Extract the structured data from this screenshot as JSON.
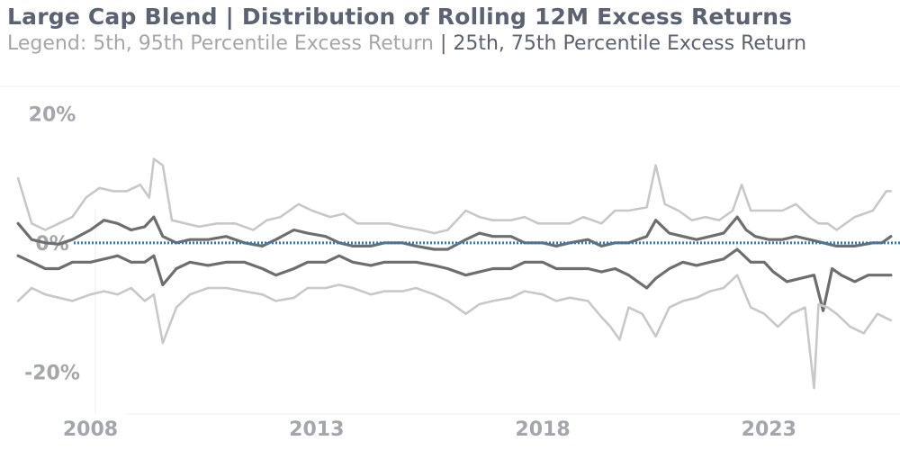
{
  "title": "Large Cap Blend | Distribution of Rolling 12M Excess Returns",
  "legend": {
    "outer_text": "Legend: 5th, 95th Percentile Excess Return",
    "separator": " | ",
    "inner_text": "25th, 75th Percentile Excess Return"
  },
  "colors": {
    "outer_band": "#c8c8c8",
    "inner_band": "#6e6e6e",
    "zero_line": "#2e7bb8",
    "title": "#5b6272",
    "tick": "#a3a6ad"
  },
  "chart_data": {
    "type": "line",
    "title": "Large Cap Blend | Distribution of Rolling 12M Excess Returns",
    "xlabel": "",
    "ylabel": "",
    "xlim": [
      2006.0,
      2025.9
    ],
    "ylim": [
      -24,
      22
    ],
    "y_ticks": [
      {
        "value": 20,
        "label": "20%"
      },
      {
        "value": 0,
        "label": "0%"
      },
      {
        "value": -20,
        "label": "-20%"
      }
    ],
    "x_ticks": [
      {
        "value": 2008,
        "label": "2008"
      },
      {
        "value": 2013,
        "label": "2013"
      },
      {
        "value": 2018,
        "label": "2018"
      },
      {
        "value": 2023,
        "label": "2023"
      }
    ],
    "reference_line": {
      "y": 0,
      "style": "dotted"
    },
    "grid": false,
    "legend": "top (in subtitle)",
    "series": [
      {
        "name": "95th Percentile Excess Return",
        "x": [
          2006.4,
          2006.7,
          2007.0,
          2007.3,
          2007.6,
          2007.9,
          2008.2,
          2008.5,
          2008.8,
          2009.1,
          2009.3,
          2009.4,
          2009.6,
          2009.8,
          2010.1,
          2010.4,
          2010.8,
          2011.2,
          2011.6,
          2011.9,
          2012.2,
          2012.6,
          2012.9,
          2013.3,
          2013.6,
          2013.9,
          2014.3,
          2014.6,
          2014.9,
          2015.3,
          2015.6,
          2015.9,
          2016.3,
          2016.6,
          2016.9,
          2017.3,
          2017.6,
          2017.9,
          2018.3,
          2018.6,
          2018.9,
          2019.3,
          2019.6,
          2019.9,
          2020.3,
          2020.5,
          2020.7,
          2021.0,
          2021.3,
          2021.6,
          2021.9,
          2022.2,
          2022.4,
          2022.6,
          2022.9,
          2023.3,
          2023.6,
          2023.9,
          2024.1,
          2024.3,
          2024.5,
          2024.9,
          2025.3,
          2025.6,
          2025.7
        ],
        "values": [
          10.0,
          3.0,
          2.0,
          3.0,
          4.0,
          7.0,
          8.5,
          8.0,
          8.0,
          9.0,
          7.0,
          13.0,
          12.0,
          3.5,
          3.0,
          2.5,
          3.0,
          3.0,
          2.0,
          3.5,
          4.0,
          6.0,
          5.0,
          4.0,
          4.5,
          3.0,
          3.0,
          3.0,
          2.5,
          2.0,
          1.5,
          2.0,
          5.0,
          4.0,
          3.5,
          3.5,
          4.0,
          3.0,
          3.0,
          3.0,
          4.0,
          3.0,
          5.0,
          5.0,
          5.5,
          12.0,
          6.0,
          5.0,
          3.5,
          4.0,
          3.5,
          5.0,
          9.0,
          5.0,
          5.0,
          5.0,
          6.0,
          4.0,
          3.0,
          3.0,
          2.0,
          4.0,
          5.0,
          8.0,
          8.0
        ]
      },
      {
        "name": "75th Percentile Excess Return",
        "x": [
          2006.4,
          2006.7,
          2007.0,
          2007.3,
          2007.6,
          2008.0,
          2008.3,
          2008.6,
          2008.9,
          2009.2,
          2009.4,
          2009.6,
          2009.9,
          2010.2,
          2010.6,
          2011.0,
          2011.4,
          2011.8,
          2012.1,
          2012.5,
          2012.8,
          2013.2,
          2013.5,
          2013.8,
          2014.2,
          2014.5,
          2014.9,
          2015.2,
          2015.6,
          2015.9,
          2016.3,
          2016.6,
          2016.9,
          2017.3,
          2017.6,
          2018.0,
          2018.3,
          2018.6,
          2019.0,
          2019.3,
          2019.6,
          2019.9,
          2020.3,
          2020.5,
          2020.8,
          2021.1,
          2021.4,
          2021.7,
          2022.0,
          2022.3,
          2022.5,
          2022.7,
          2023.0,
          2023.3,
          2023.6,
          2023.9,
          2024.2,
          2024.5,
          2024.9,
          2025.3,
          2025.5,
          2025.7
        ],
        "values": [
          3.0,
          0.5,
          0.0,
          -0.2,
          0.5,
          2.0,
          3.5,
          3.0,
          2.0,
          2.5,
          4.0,
          1.0,
          0.0,
          0.5,
          0.5,
          1.0,
          0.0,
          -0.5,
          0.5,
          2.0,
          1.5,
          1.0,
          0.0,
          -0.5,
          -0.5,
          0.0,
          0.0,
          -0.5,
          -1.0,
          -1.0,
          0.5,
          1.5,
          1.0,
          1.0,
          0.0,
          0.0,
          -0.5,
          0.0,
          0.5,
          -0.5,
          0.0,
          0.0,
          1.0,
          3.5,
          1.5,
          1.0,
          0.5,
          1.0,
          1.5,
          4.0,
          2.0,
          1.0,
          0.5,
          0.5,
          1.0,
          0.5,
          0.0,
          -0.5,
          -0.5,
          0.0,
          0.0,
          1.0
        ]
      },
      {
        "name": "25th Percentile Excess Return",
        "x": [
          2006.4,
          2006.7,
          2007.0,
          2007.3,
          2007.6,
          2008.0,
          2008.3,
          2008.6,
          2008.9,
          2009.2,
          2009.4,
          2009.6,
          2009.9,
          2010.2,
          2010.6,
          2011.0,
          2011.4,
          2011.8,
          2012.1,
          2012.5,
          2012.8,
          2013.2,
          2013.5,
          2013.8,
          2014.2,
          2014.5,
          2014.9,
          2015.2,
          2015.6,
          2015.9,
          2016.3,
          2016.6,
          2016.9,
          2017.3,
          2017.6,
          2018.0,
          2018.3,
          2018.6,
          2019.0,
          2019.3,
          2019.6,
          2019.9,
          2020.3,
          2020.5,
          2020.8,
          2021.1,
          2021.4,
          2021.7,
          2022.0,
          2022.3,
          2022.6,
          2022.9,
          2023.1,
          2023.4,
          2023.7,
          2024.0,
          2024.2,
          2024.4,
          2024.6,
          2024.9,
          2025.2,
          2025.5,
          2025.7
        ],
        "values": [
          -2.0,
          -3.0,
          -4.0,
          -4.0,
          -3.0,
          -3.0,
          -2.5,
          -2.0,
          -3.0,
          -3.0,
          -2.0,
          -6.5,
          -4.0,
          -3.0,
          -3.5,
          -3.0,
          -3.0,
          -4.0,
          -5.0,
          -4.0,
          -3.0,
          -3.0,
          -2.0,
          -3.0,
          -3.5,
          -3.0,
          -3.0,
          -3.0,
          -3.5,
          -4.0,
          -5.0,
          -4.5,
          -4.0,
          -4.0,
          -3.0,
          -3.0,
          -4.0,
          -4.0,
          -4.0,
          -4.5,
          -4.0,
          -5.0,
          -7.0,
          -5.5,
          -4.0,
          -3.0,
          -3.5,
          -3.0,
          -2.5,
          -1.0,
          -3.0,
          -3.0,
          -4.5,
          -6.0,
          -5.5,
          -5.0,
          -10.5,
          -4.0,
          -5.0,
          -6.0,
          -5.0,
          -5.0,
          -5.0
        ]
      },
      {
        "name": "5th Percentile Excess Return",
        "x": [
          2006.4,
          2006.7,
          2007.0,
          2007.3,
          2007.6,
          2008.0,
          2008.3,
          2008.6,
          2008.9,
          2009.2,
          2009.4,
          2009.6,
          2009.9,
          2010.2,
          2010.6,
          2011.0,
          2011.4,
          2011.8,
          2012.1,
          2012.5,
          2012.8,
          2013.2,
          2013.5,
          2013.8,
          2014.2,
          2014.5,
          2014.9,
          2015.2,
          2015.6,
          2015.9,
          2016.3,
          2016.6,
          2016.9,
          2017.3,
          2017.6,
          2018.0,
          2018.3,
          2018.6,
          2019.0,
          2019.3,
          2019.5,
          2019.7,
          2019.9,
          2020.2,
          2020.5,
          2020.8,
          2021.1,
          2021.4,
          2021.7,
          2022.0,
          2022.3,
          2022.6,
          2022.9,
          2023.2,
          2023.5,
          2023.8,
          2024.0,
          2024.1,
          2024.3,
          2024.5,
          2024.8,
          2025.1,
          2025.4,
          2025.7
        ],
        "values": [
          -9.0,
          -7.0,
          -8.0,
          -8.5,
          -9.0,
          -8.0,
          -7.5,
          -8.0,
          -7.0,
          -9.0,
          -8.0,
          -15.5,
          -10.0,
          -8.0,
          -7.0,
          -7.0,
          -7.5,
          -8.0,
          -9.0,
          -8.5,
          -7.0,
          -7.0,
          -6.5,
          -7.0,
          -8.0,
          -7.5,
          -7.5,
          -7.0,
          -8.0,
          -9.0,
          -11.0,
          -9.5,
          -9.0,
          -8.5,
          -7.5,
          -8.0,
          -9.0,
          -8.5,
          -9.0,
          -11.5,
          -13.0,
          -15.0,
          -10.0,
          -11.0,
          -14.5,
          -10.0,
          -9.0,
          -8.5,
          -7.5,
          -7.0,
          -5.0,
          -10.0,
          -11.0,
          -13.0,
          -11.0,
          -10.0,
          -22.5,
          -9.5,
          -10.0,
          -11.0,
          -13.0,
          -14.0,
          -11.0,
          -12.0
        ]
      }
    ]
  }
}
